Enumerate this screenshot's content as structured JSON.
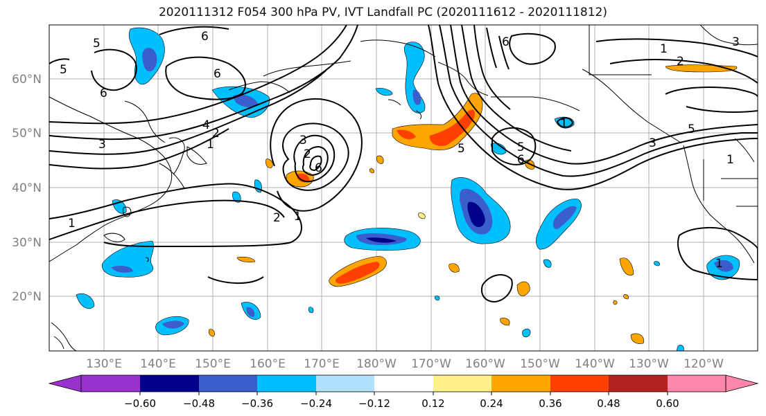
{
  "title": "2020111312 F054 300 hPa PV, IVT Landfall PC (2020111612 - 2020111812)",
  "lat_labels": [
    "60°N",
    "50°N",
    "40°N",
    "30°N",
    "20°N"
  ],
  "lon_labels": [
    "130°E",
    "140°E",
    "150°E",
    "160°E",
    "170°E",
    "180°W",
    "170°W",
    "160°W",
    "150°W",
    "140°W",
    "130°W",
    "120°W"
  ],
  "contour_labels": [
    "1",
    "2",
    "3",
    "4",
    "5",
    "6"
  ],
  "colorbar": {
    "colors": [
      "#9932cc",
      "#00008b",
      "#3a5fcd",
      "#00bfff",
      "#b0e2ff",
      "#ffffff",
      "#fff08c",
      "#ffa500",
      "#ff4000",
      "#b22222",
      "#ff88aa"
    ],
    "tick_labels": [
      "−0.60",
      "−0.48",
      "−0.36",
      "−0.24",
      "−0.12",
      "0.12",
      "0.24",
      "0.36",
      "0.48",
      "0.60"
    ]
  },
  "colors": {
    "axis_label": "#808080",
    "grid": "#b0b0b0",
    "contour": "#000000",
    "coast": "#000000"
  }
}
